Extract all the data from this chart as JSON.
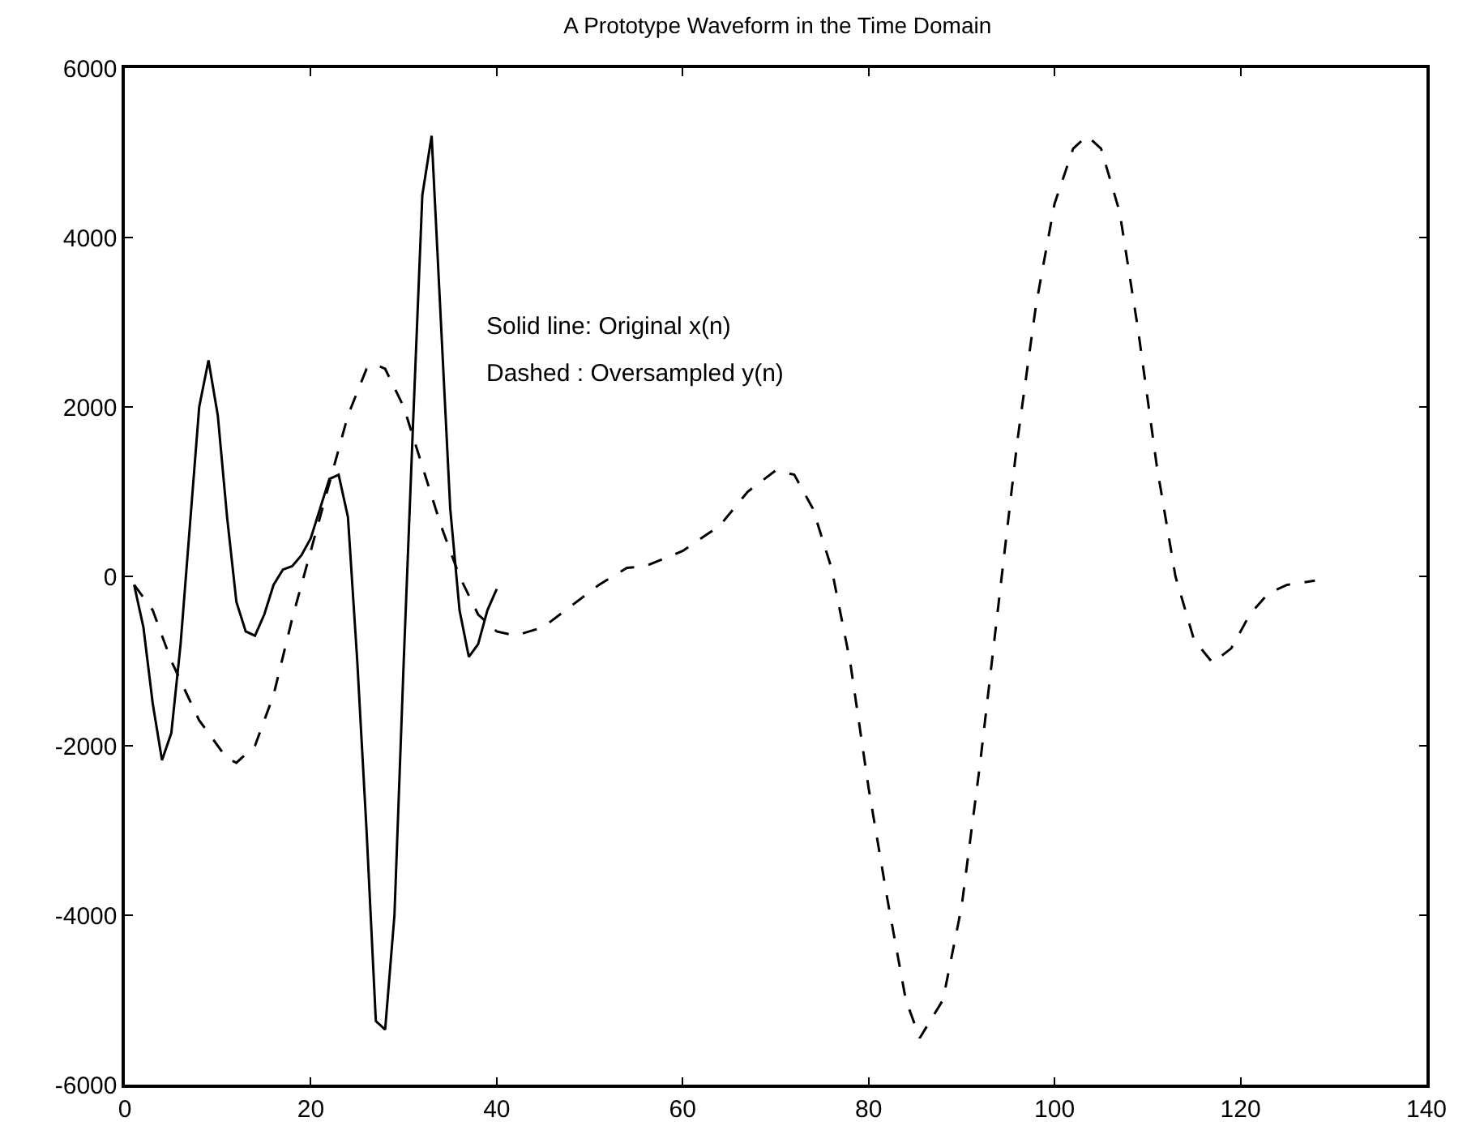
{
  "chart_data": {
    "type": "line",
    "title": "A Prototype Waveform in the Time Domain",
    "annotations": [
      "Solid line: Original x(n)",
      "Dashed : Oversampled y(n)"
    ],
    "series": [
      {
        "color": "#000000",
        "line_style": "solid",
        "x": [
          1,
          2,
          3,
          4,
          5,
          6,
          7,
          8,
          9,
          10,
          11,
          12,
          13,
          14,
          15,
          16,
          17,
          18,
          19,
          20,
          21,
          22,
          23,
          24,
          25,
          26,
          27,
          28,
          29,
          30,
          31,
          32,
          33,
          34,
          35,
          36,
          37,
          38,
          39,
          40
        ],
        "values": [
          -100,
          -600,
          -1500,
          -2170,
          -1850,
          -800,
          600,
          2000,
          2550,
          1900,
          700,
          -300,
          -650,
          -700,
          -450,
          -100,
          80,
          120,
          250,
          450,
          800,
          1150,
          1200,
          700,
          -1000,
          -3000,
          -5250,
          -5350,
          -4000,
          -1000,
          1800,
          4500,
          5200,
          3000,
          800,
          -400,
          -950,
          -800,
          -400,
          -150
        ]
      },
      {
        "color": "#000000",
        "line_style": "dashed",
        "x": [
          1,
          3,
          5,
          8,
          11,
          12,
          14,
          16,
          18,
          20,
          22,
          24,
          26,
          27,
          28,
          30,
          32,
          34,
          36,
          38,
          40,
          42,
          45,
          48,
          51,
          54,
          56,
          60,
          64,
          67,
          70,
          72,
          74,
          76,
          78,
          80,
          82,
          84,
          85.5,
          88,
          90,
          92,
          94,
          96,
          98,
          100,
          102,
          103.5,
          105,
          107,
          109,
          111,
          113,
          115,
          117,
          119,
          121,
          123,
          125,
          128
        ],
        "values": [
          -100,
          -400,
          -1000,
          -1700,
          -2150,
          -2200,
          -2000,
          -1400,
          -500,
          300,
          1100,
          1900,
          2450,
          2500,
          2450,
          2000,
          1300,
          600,
          0,
          -450,
          -650,
          -700,
          -600,
          -350,
          -100,
          100,
          120,
          300,
          600,
          1000,
          1250,
          1200,
          800,
          100,
          -1000,
          -2500,
          -3800,
          -5000,
          -5450,
          -5000,
          -3900,
          -2200,
          -300,
          1600,
          3200,
          4400,
          5050,
          5200,
          5050,
          4300,
          2900,
          1300,
          0,
          -750,
          -1020,
          -850,
          -450,
          -200,
          -100,
          -50
        ]
      }
    ],
    "xlim": [
      0,
      140
    ],
    "xticks": [
      0,
      20,
      40,
      60,
      80,
      100,
      120,
      140
    ],
    "yticks": [
      -6000,
      -4000,
      -2000,
      0,
      2000,
      4000,
      6000
    ],
    "ylim": [
      -6000,
      6000
    ]
  }
}
